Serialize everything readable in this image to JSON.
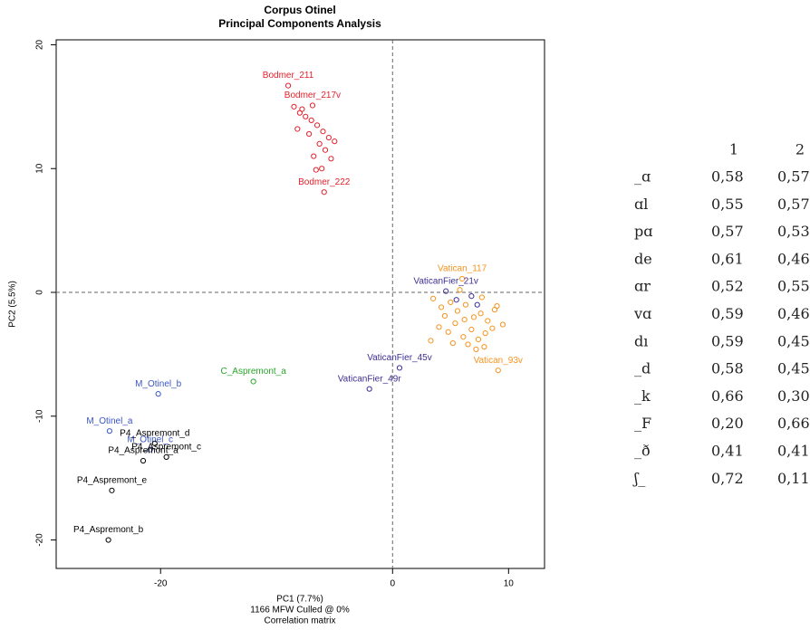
{
  "chart_data": {
    "type": "scatter",
    "title": "Corpus Otinel",
    "subtitle": "Principal Components Analysis",
    "x_label": "PC1 (7.7%)",
    "y_label": "PC2 (5.5%)",
    "notes": [
      "1166 MFW  Culled @ 0%",
      "Correlation matrix"
    ],
    "xlim": [
      -29,
      13.1
    ],
    "ylim": [
      -22.3,
      20.4
    ],
    "xticks": [
      -20,
      0,
      10
    ],
    "yticks": [
      -20,
      -10,
      0,
      10,
      20
    ],
    "zero_lines": true,
    "series": [
      {
        "color": "#e3202b",
        "x": [
          -9.0,
          -6.9,
          -5.9,
          -8.5,
          -8.0,
          -7.5,
          -7.0,
          -6.5,
          -6.0,
          -5.5,
          -8.2,
          -7.2,
          -6.3,
          -5.8,
          -6.8,
          -7.8,
          -6.1,
          -5.3,
          -6.6,
          -5.0
        ],
        "values": [
          16.7,
          15.1,
          8.1,
          15.0,
          14.5,
          14.2,
          13.9,
          13.5,
          13.0,
          12.5,
          13.2,
          12.8,
          12.0,
          11.5,
          11.0,
          14.8,
          10.0,
          10.8,
          9.9,
          12.2
        ],
        "labels": [
          "Bodmer_211",
          "Bodmer_217v",
          "Bodmer_222",
          null,
          null,
          null,
          null,
          null,
          null,
          null,
          null,
          null,
          null,
          null,
          null,
          null,
          null,
          null,
          null,
          null
        ]
      },
      {
        "color": "#f7931e",
        "x": [
          6.0,
          9.1,
          3.5,
          4.2,
          5.0,
          5.6,
          6.3,
          7.0,
          7.6,
          8.2,
          8.8,
          9.5,
          4.0,
          4.8,
          5.4,
          6.1,
          6.8,
          7.4,
          8.0,
          8.6,
          3.3,
          5.2,
          6.5,
          7.2,
          7.9,
          4.5,
          5.8,
          9.0,
          6.2,
          7.7
        ],
        "values": [
          1.1,
          -6.3,
          -0.5,
          -1.2,
          -0.8,
          -1.5,
          -1.0,
          -2.0,
          -1.7,
          -2.3,
          -1.4,
          -2.6,
          -2.8,
          -3.2,
          -2.5,
          -3.6,
          -3.0,
          -3.8,
          -3.3,
          -2.9,
          -3.9,
          -4.1,
          -4.2,
          -4.6,
          -4.4,
          -1.9,
          0.2,
          -1.1,
          -2.2,
          -0.4
        ],
        "labels": [
          "Vatican_117",
          "Vatican_93v",
          null,
          null,
          null,
          null,
          null,
          null,
          null,
          null,
          null,
          null,
          null,
          null,
          null,
          null,
          null,
          null,
          null,
          null,
          null,
          null,
          null,
          null,
          null,
          null,
          null,
          null,
          null,
          null
        ]
      },
      {
        "color": "#3d2f96",
        "x": [
          0.6,
          -2.0,
          4.6,
          5.5,
          6.8,
          7.3
        ],
        "values": [
          -6.1,
          -7.8,
          0.1,
          -0.6,
          -0.3,
          -1.0
        ],
        "labels": [
          "VaticanFier_45v",
          "VaticanFier_49r",
          "VaticanFier_21v",
          null,
          null,
          null
        ]
      },
      {
        "color": "#3a56c4",
        "x": [
          -24.4,
          -20.2,
          -20.9
        ],
        "values": [
          -11.2,
          -8.2,
          -12.7
        ],
        "labels": [
          "M_Otinel_a",
          "M_Otinel_b",
          "M_Otinel_c"
        ]
      },
      {
        "color": "#2aa52b",
        "x": [
          -12.0
        ],
        "values": [
          -7.2
        ],
        "labels": [
          "C_Aspremont_a"
        ]
      },
      {
        "color": "#000000",
        "x": [
          -24.5,
          -24.2,
          -21.5,
          -19.5,
          -20.5
        ],
        "values": [
          -20.0,
          -16.0,
          -13.6,
          -13.3,
          -12.2
        ],
        "labels": [
          "P4_Aspremont_b",
          "P4_Aspremont_e",
          "P4_Aspremont_a",
          "P4_Aspremont_c",
          "P4_Aspremont_d"
        ]
      }
    ]
  },
  "table": {
    "header": [
      "1",
      "2"
    ],
    "rows": [
      [
        "_ɑ",
        "0,58",
        "0,57"
      ],
      [
        "ɑl",
        "0,55",
        "0,57"
      ],
      [
        "pɑ",
        "0,57",
        "0,53"
      ],
      [
        "de",
        "0,61",
        "0,46"
      ],
      [
        "ɑr",
        "0,52",
        "0,55"
      ],
      [
        "vɑ",
        "0,59",
        "0,46"
      ],
      [
        "dı",
        "0,59",
        "0,45"
      ],
      [
        "_d",
        "0,58",
        "0,45"
      ],
      [
        "_k",
        "0,66",
        "0,30"
      ],
      [
        "_F",
        "0,20",
        "0,66"
      ],
      [
        "_ð",
        "0,41",
        "0,41"
      ],
      [
        "ʃ_",
        "0,72",
        "0,11"
      ]
    ]
  }
}
